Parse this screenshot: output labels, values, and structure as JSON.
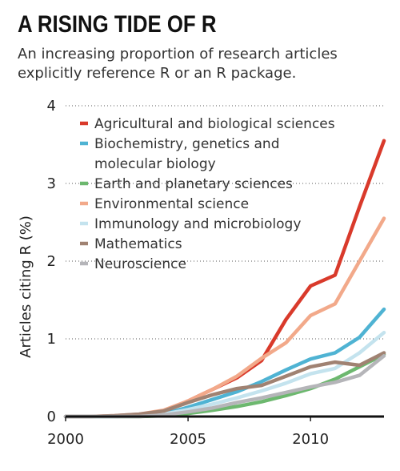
{
  "header": {
    "title": "A RISING TIDE OF R",
    "subtitle": "An increasing proportion of research articles explicitly reference R or an R package."
  },
  "chart_data": {
    "type": "line",
    "title": "A RISING TIDE OF R",
    "subtitle": "An increasing proportion of research articles explicitly reference R or an R package.",
    "xlabel": "",
    "ylabel": "Articles citing R (%)",
    "xlim": [
      2000,
      2013
    ],
    "ylim": [
      0,
      4
    ],
    "xticks": [
      2000,
      2005,
      2010
    ],
    "yticks": [
      0,
      1,
      2,
      3,
      4
    ],
    "grid": "horizontal dotted",
    "legend_position": "top-left",
    "x": [
      2000,
      2001,
      2002,
      2003,
      2004,
      2005,
      2006,
      2007,
      2008,
      2009,
      2010,
      2011,
      2012,
      2013
    ],
    "series": [
      {
        "name": "Agricultural and biological sciences",
        "color": "#d93a2b",
        "values": [
          0,
          0,
          0,
          0.01,
          0.06,
          0.2,
          0.35,
          0.5,
          0.72,
          1.25,
          1.68,
          1.82,
          2.7,
          3.55
        ]
      },
      {
        "name": "Biochemistry, genetics and molecular biology",
        "color": "#4fb3d3",
        "values": [
          0,
          0,
          0,
          0.01,
          0.03,
          0.12,
          0.22,
          0.32,
          0.45,
          0.6,
          0.74,
          0.82,
          1.02,
          1.38
        ]
      },
      {
        "name": "Earth and planetary sciences",
        "color": "#6db86f",
        "values": [
          0,
          0,
          0,
          0,
          0.01,
          0.04,
          0.08,
          0.13,
          0.19,
          0.27,
          0.36,
          0.48,
          0.64,
          0.8
        ]
      },
      {
        "name": "Environmental science",
        "color": "#f2a98a",
        "values": [
          0,
          0,
          0.01,
          0.03,
          0.08,
          0.2,
          0.35,
          0.52,
          0.75,
          0.95,
          1.3,
          1.45,
          2.0,
          2.55
        ]
      },
      {
        "name": "Immunology and microbiology",
        "color": "#c4e3ee",
        "values": [
          0,
          0,
          0,
          0.01,
          0.03,
          0.09,
          0.16,
          0.24,
          0.33,
          0.43,
          0.55,
          0.62,
          0.82,
          1.08
        ]
      },
      {
        "name": "Mathematics",
        "color": "#a08272",
        "values": [
          0,
          0,
          0.01,
          0.03,
          0.07,
          0.18,
          0.28,
          0.36,
          0.4,
          0.52,
          0.64,
          0.7,
          0.66,
          0.82
        ]
      },
      {
        "name": "Neuroscience",
        "color": "#b5b5b9",
        "values": [
          0,
          0,
          0,
          0,
          0.02,
          0.06,
          0.11,
          0.18,
          0.24,
          0.31,
          0.38,
          0.44,
          0.53,
          0.78
        ]
      }
    ]
  }
}
